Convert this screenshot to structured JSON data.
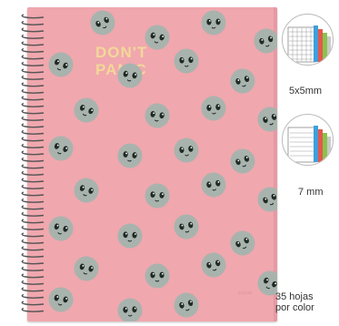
{
  "product": {
    "cover_text_line1": "DON'T",
    "cover_text_line2": "PANIC",
    "cover_color": "#f0a7ae",
    "face_color": "#a9b3ad",
    "spiral_color": "#555555"
  },
  "options": [
    {
      "icon": "grid-paper-icon",
      "label": "5x5mm"
    },
    {
      "icon": "lined-paper-icon",
      "label": "7 mm"
    }
  ],
  "sheets": {
    "line1": "35 hojas",
    "line2": "por color"
  },
  "tab_colors": [
    "#3da0dd",
    "#e5564f",
    "#8ac34a",
    "#c9c9c9"
  ]
}
